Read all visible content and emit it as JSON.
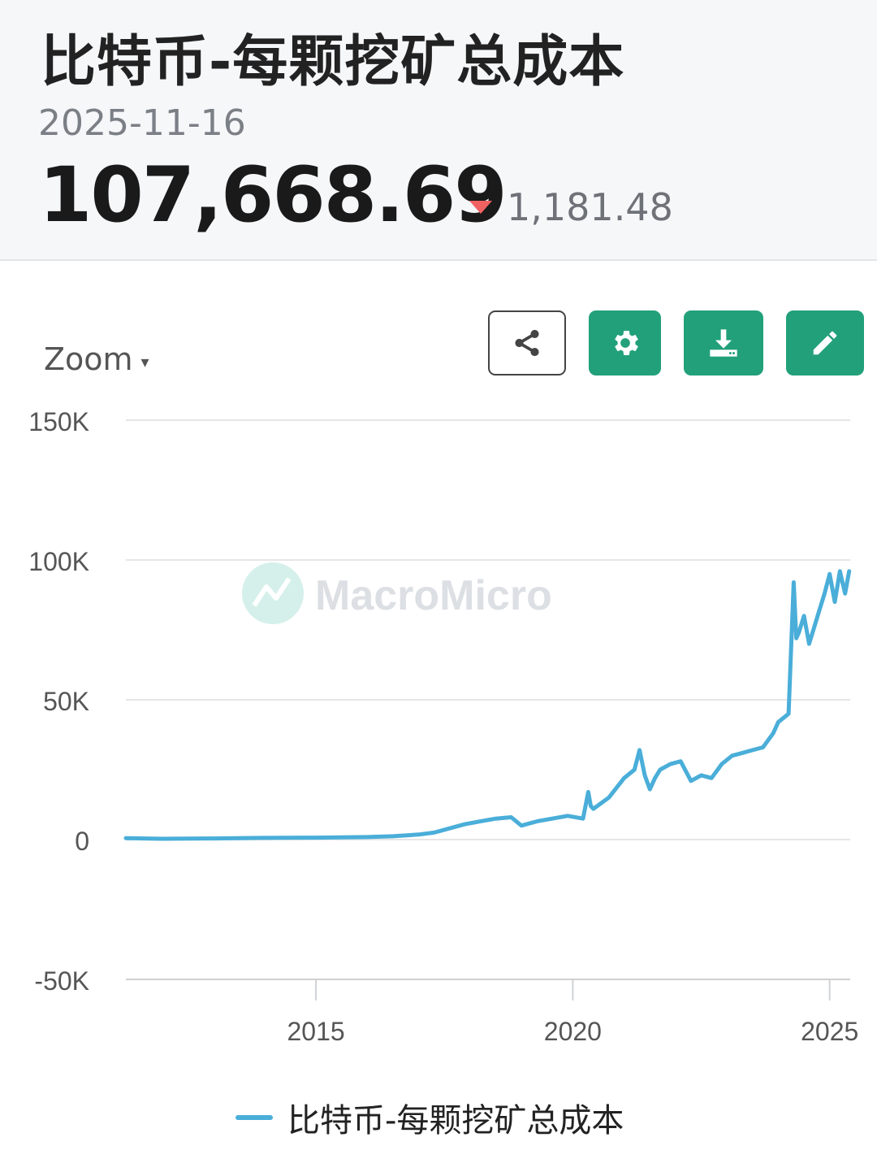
{
  "header": {
    "title": "比特币-每颗挖矿总成本",
    "date": "2025-11-16",
    "value": "107,668.69",
    "change": "1,181.48",
    "change_direction": "down"
  },
  "toolbar": {
    "zoom_label": "Zoom",
    "zoom_caret": "▾",
    "buttons": [
      {
        "name": "share",
        "icon": "share-icon"
      },
      {
        "name": "settings",
        "icon": "gear-icon"
      },
      {
        "name": "download",
        "icon": "download-icon"
      },
      {
        "name": "edit",
        "icon": "pencil-icon"
      }
    ]
  },
  "watermark": "MacroMicro",
  "colors": {
    "line": "#4aaed9",
    "accent": "#22a07a",
    "down": "#f06262"
  },
  "chart_data": {
    "type": "line",
    "title": "",
    "xlabel": "",
    "ylabel": "",
    "xlim": [
      2011.3,
      2025.4
    ],
    "ylim": [
      -50000,
      150000
    ],
    "yticks": [
      150000,
      100000,
      50000,
      0,
      -50000
    ],
    "ytick_labels": [
      "150K",
      "100K",
      "50K",
      "0",
      "-50K"
    ],
    "xticks": [
      2015,
      2020,
      2025
    ],
    "xtick_labels": [
      "2015",
      "2020",
      "2025"
    ],
    "grid": true,
    "legend_position": "bottom",
    "series": [
      {
        "name": "比特币-每颗挖矿总成本",
        "x": [
          2011.3,
          2012.0,
          2013.0,
          2014.0,
          2015.0,
          2016.0,
          2016.5,
          2017.0,
          2017.3,
          2017.6,
          2017.9,
          2018.2,
          2018.5,
          2018.8,
          2019.0,
          2019.3,
          2019.6,
          2019.9,
          2020.2,
          2020.3,
          2020.35,
          2020.4,
          2020.7,
          2021.0,
          2021.2,
          2021.3,
          2021.4,
          2021.5,
          2021.6,
          2021.7,
          2021.9,
          2022.1,
          2022.3,
          2022.5,
          2022.7,
          2022.9,
          2023.1,
          2023.3,
          2023.5,
          2023.7,
          2023.9,
          2024.0,
          2024.2,
          2024.3,
          2024.35,
          2024.4,
          2024.5,
          2024.6,
          2024.7,
          2024.8,
          2024.9,
          2025.0,
          2025.1,
          2025.2,
          2025.3,
          2025.38
        ],
        "values": [
          500,
          300,
          400,
          600,
          700,
          900,
          1200,
          1800,
          2500,
          4000,
          5500,
          6500,
          7500,
          8000,
          5000,
          6500,
          7500,
          8500,
          7500,
          17000,
          12000,
          11000,
          15000,
          22000,
          25000,
          32000,
          23000,
          18000,
          22000,
          25000,
          27000,
          28000,
          21000,
          23000,
          22000,
          27000,
          30000,
          31000,
          32000,
          33000,
          38000,
          42000,
          45000,
          92000,
          72000,
          74000,
          80000,
          70000,
          76000,
          82000,
          88000,
          95000,
          85000,
          96000,
          88000,
          96000
        ]
      }
    ]
  }
}
